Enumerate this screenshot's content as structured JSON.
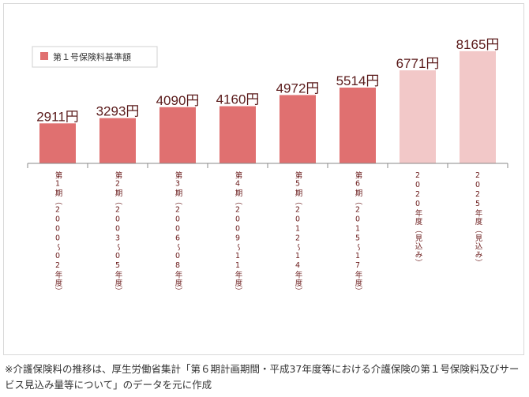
{
  "chart_data": {
    "type": "bar",
    "legend": "第１号保険料基準額",
    "legend_position": "top-left",
    "categories": [
      "第1期（2000～02年度）",
      "第2期（2003～05年度）",
      "第3期（2006～08年度）",
      "第4期（2009～11年度）",
      "第5期（2012～14年度）",
      "第6期（2015～17年度）",
      "2020年度（見込み）",
      "2025年度（見込み）"
    ],
    "values": [
      2911,
      3293,
      4090,
      4160,
      4972,
      5514,
      6771,
      8165
    ],
    "value_labels": [
      "2911円",
      "3293円",
      "4090円",
      "4160円",
      "4972円",
      "5514円",
      "6771円",
      "8165円"
    ],
    "projected": [
      false,
      false,
      false,
      false,
      false,
      false,
      true,
      true
    ],
    "colors": {
      "actual": "#e07070",
      "projected": "#f2c8c8"
    },
    "ylim": [
      0,
      8500
    ],
    "grid": false
  },
  "footnote": "※介護保険料の推移は、厚生労働省集計「第６期計画期間・平成37年度等における介護保険の第１号保険料及びサービス見込み量等について」のデータを元に作成"
}
